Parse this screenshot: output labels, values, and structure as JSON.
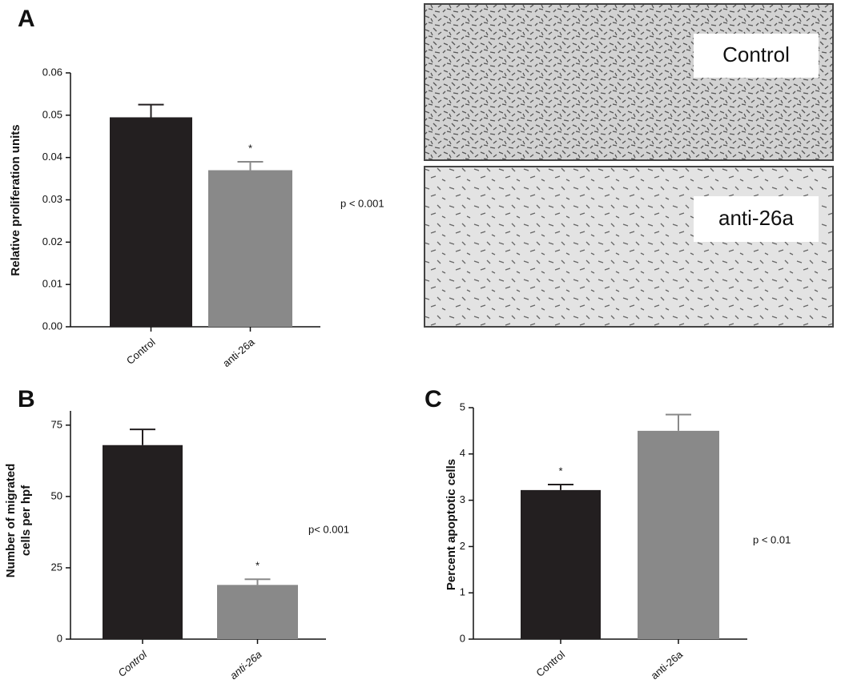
{
  "chart_data": [
    {
      "type": "bar",
      "panel": "A",
      "ylabel": [
        "Relative proliferation units"
      ],
      "categories": [
        "Control",
        "anti-26a"
      ],
      "values": [
        0.0495,
        0.037
      ],
      "errors": [
        0.003,
        0.002
      ],
      "colors": [
        "#231f20",
        "#898989"
      ],
      "ylim": [
        0,
        0.06
      ],
      "yticks": [
        {
          "value": 0,
          "label": "0.00"
        },
        0.01,
        0.02,
        0.03,
        0.04,
        0.05,
        0.06
      ],
      "significance": "*",
      "p_value": "p < 0.001"
    },
    {
      "type": "bar",
      "panel": "B",
      "ylabel": [
        "Number of migrated",
        "cells per hpf"
      ],
      "categories": [
        "Control",
        "anti-26a"
      ],
      "values": [
        68,
        19
      ],
      "errors": [
        5.5,
        2
      ],
      "colors": [
        "#231f20",
        "#898989"
      ],
      "ylim": [
        0,
        80
      ],
      "yticks": [
        0,
        25,
        50,
        75
      ],
      "significance": "*",
      "p_value": "p< 0.001"
    },
    {
      "type": "bar",
      "panel": "C",
      "ylabel": [
        "Percent apoptotic cells"
      ],
      "categories": [
        "Control",
        "anti-26a"
      ],
      "values": [
        3.22,
        4.5
      ],
      "errors": [
        0.12,
        0.35
      ],
      "colors": [
        "#231f20",
        "#898989"
      ],
      "ylim": [
        0,
        5
      ],
      "yticks": [
        0,
        1,
        2,
        3,
        4,
        5
      ],
      "significance": "*",
      "p_value": "p < 0.01"
    }
  ],
  "images": [
    {
      "label": "Control"
    },
    {
      "label": "anti-26a"
    }
  ]
}
